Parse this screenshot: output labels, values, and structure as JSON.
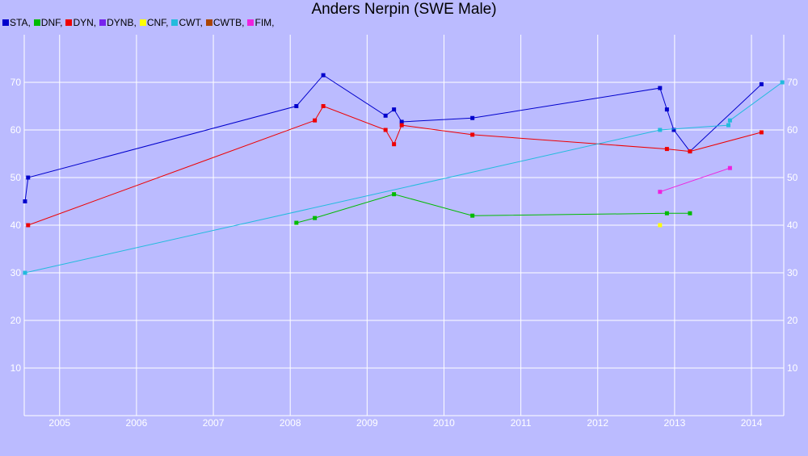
{
  "chart_data": {
    "type": "line",
    "title": "Anders Nerpin (SWE Male)",
    "xlabel": "",
    "ylabel": "",
    "xlim": [
      2004.54,
      2014.42
    ],
    "ylim": [
      0,
      80
    ],
    "grid": true,
    "legend_position": "top-left",
    "x_ticks": [
      2005,
      2006,
      2007,
      2008,
      2009,
      2010,
      2011,
      2012,
      2013,
      2014
    ],
    "x_tick_labels": [
      "2005",
      "2006",
      "2007",
      "2008",
      "2009",
      "2010",
      "2011",
      "2012",
      "2013",
      "2014"
    ],
    "y_ticks": [
      10,
      20,
      30,
      40,
      50,
      60,
      70
    ],
    "y_tick_labels": [
      "10",
      "20",
      "30",
      "40",
      "50",
      "60",
      "70"
    ],
    "series": [
      {
        "name": "STA",
        "color": "#0000cc",
        "points": [
          [
            2004.55,
            45
          ],
          [
            2004.59,
            50
          ],
          [
            2008.08,
            65
          ],
          [
            2008.43,
            71.5
          ],
          [
            2009.24,
            63
          ],
          [
            2009.35,
            64.3
          ],
          [
            2009.45,
            61.7
          ],
          [
            2010.37,
            62.5
          ],
          [
            2012.81,
            68.8
          ],
          [
            2012.9,
            64.3
          ],
          [
            2012.99,
            60
          ],
          [
            2013.2,
            55.5
          ],
          [
            2014.13,
            69.6
          ]
        ]
      },
      {
        "name": "DNF",
        "color": "#00bb00",
        "points": [
          [
            2008.08,
            40.5
          ],
          [
            2008.32,
            41.5
          ],
          [
            2009.35,
            46.5
          ],
          [
            2010.37,
            42
          ],
          [
            2012.9,
            42.5
          ],
          [
            2013.2,
            42.5
          ]
        ]
      },
      {
        "name": "DYN",
        "color": "#ee0000",
        "points": [
          [
            2004.59,
            40
          ],
          [
            2008.32,
            62
          ],
          [
            2008.43,
            65
          ],
          [
            2009.24,
            60
          ],
          [
            2009.35,
            57
          ],
          [
            2009.45,
            61
          ],
          [
            2010.37,
            59
          ],
          [
            2012.9,
            56
          ],
          [
            2013.2,
            55.5
          ],
          [
            2014.13,
            59.5
          ]
        ]
      },
      {
        "name": "DYNB",
        "color": "#7722ee",
        "points": []
      },
      {
        "name": "CNF",
        "color": "#ffff00",
        "points": [
          [
            2012.81,
            40
          ]
        ]
      },
      {
        "name": "CWT",
        "color": "#22bbdd",
        "points": [
          [
            2004.55,
            30
          ],
          [
            2012.81,
            60
          ],
          [
            2013.7,
            61
          ],
          [
            2013.72,
            62
          ],
          [
            2014.4,
            70
          ]
        ]
      },
      {
        "name": "CWTB",
        "color": "#aa4400",
        "points": []
      },
      {
        "name": "FIM",
        "color": "#ee22dd",
        "points": [
          [
            2012.81,
            47
          ],
          [
            2013.72,
            52
          ]
        ]
      }
    ]
  }
}
